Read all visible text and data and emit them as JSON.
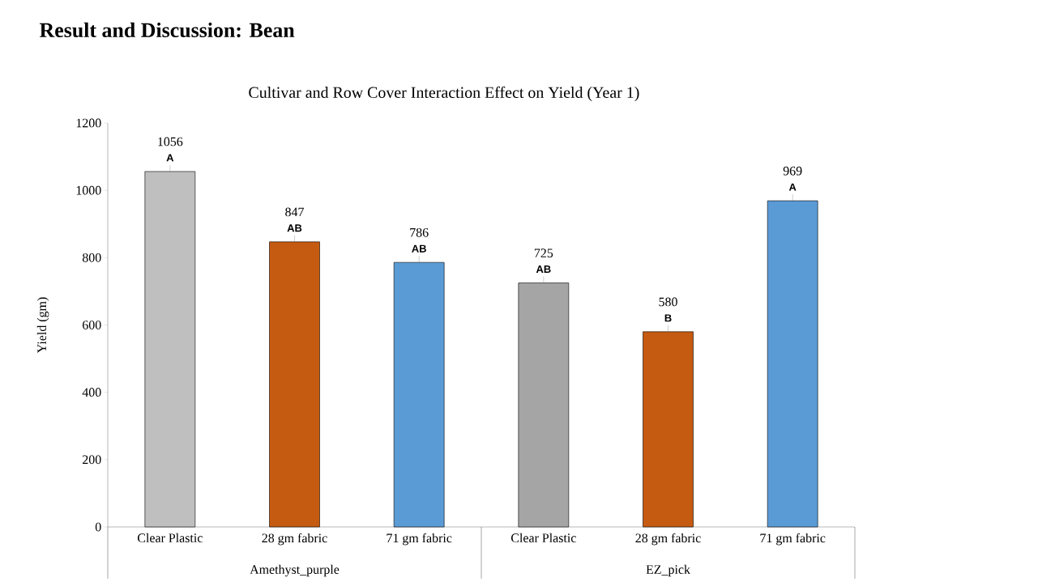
{
  "chart_data": {
    "type": "bar",
    "title": "Result and Discussion: Bean",
    "subtitle": "Cultivar and Row Cover Interaction Effect on Yield (Year 1)",
    "ylabel": "Yield (gm)",
    "categories": [
      "Clear Plastic",
      "28 gm fabric",
      "71 gm fabric",
      "Clear Plastic",
      "28 gm fabric",
      "71 gm fabric"
    ],
    "values": [
      1056,
      847,
      786,
      725,
      580,
      969
    ],
    "colors": [
      "#bfbfbf",
      "#c55a11",
      "#5b9bd5",
      "#a5a5a5",
      "#c55a11",
      "#5b9bd5"
    ],
    "data_labels": true,
    "ylim": [
      0,
      1200
    ],
    "yticks": [
      0,
      200,
      400,
      600,
      800,
      1000,
      1200
    ],
    "annotations": [
      "A",
      "AB",
      "AB",
      "AB",
      "B",
      "A",
      "Amethyst_purple",
      "EZ_pick"
    ],
    "grid": false
  }
}
